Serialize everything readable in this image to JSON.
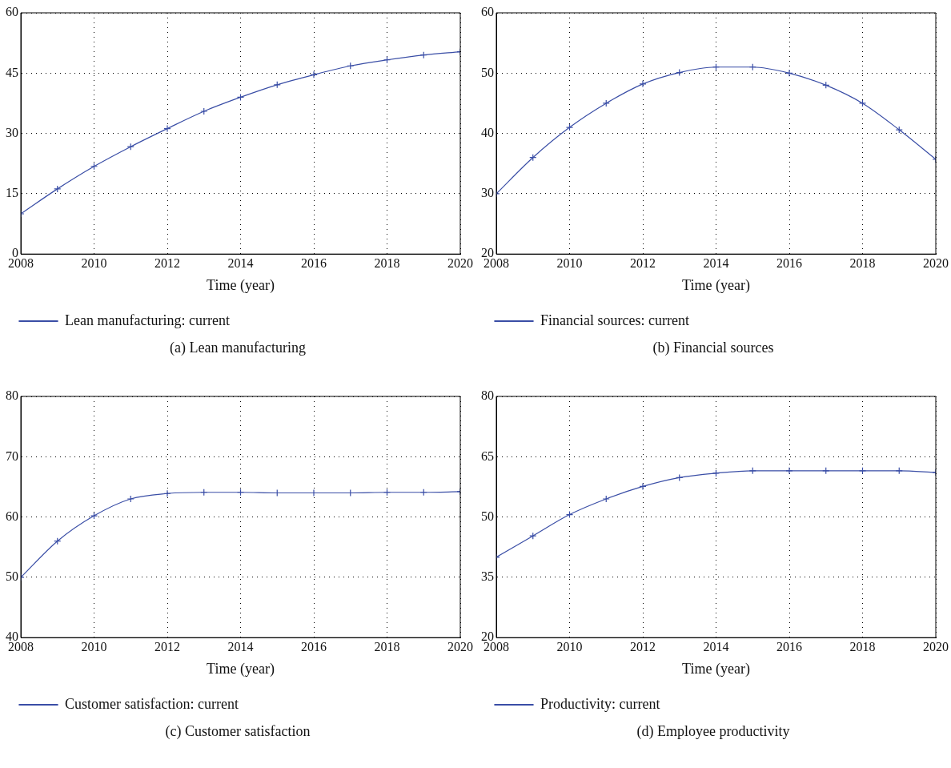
{
  "chart_data": [
    {
      "type": "line",
      "x": [
        2008,
        2009,
        2010,
        2011,
        2012,
        2013,
        2014,
        2015,
        2016,
        2017,
        2018,
        2019,
        2020
      ],
      "xlim": [
        2008,
        2020
      ],
      "xticks": [
        2008,
        2010,
        2012,
        2014,
        2016,
        2018,
        2020
      ],
      "ylim": [
        0,
        60
      ],
      "yticks": [
        0,
        15,
        30,
        45,
        60
      ],
      "xlabel": "Time (year)",
      "grid": true,
      "legend": "bottom",
      "marker": "cross",
      "line_style": "solid",
      "series": [
        {
          "name": "Lean manufacturing: current",
          "color": "#3a4ea6",
          "values": [
            10,
            16.2,
            21.8,
            26.7,
            31.2,
            35.5,
            39,
            42.1,
            44.6,
            46.8,
            48.3,
            49.5,
            50.3
          ]
        }
      ],
      "annotations": [
        "(a)  Lean manufacturing"
      ]
    },
    {
      "type": "line",
      "x": [
        2008,
        2009,
        2010,
        2011,
        2012,
        2013,
        2014,
        2015,
        2016,
        2017,
        2018,
        2019,
        2020
      ],
      "xlim": [
        2008,
        2020
      ],
      "xticks": [
        2008,
        2010,
        2012,
        2014,
        2016,
        2018,
        2020
      ],
      "ylim": [
        20,
        60
      ],
      "yticks": [
        20,
        30,
        40,
        50,
        60
      ],
      "xlabel": "Time (year)",
      "grid": true,
      "legend": "bottom",
      "marker": "cross",
      "line_style": "solid",
      "series": [
        {
          "name": "Financial sources: current",
          "color": "#3a4ea6",
          "values": [
            30,
            36,
            41,
            45,
            48.2,
            50.1,
            51,
            51,
            50,
            48,
            45,
            40.6,
            35.7
          ]
        }
      ],
      "annotations": [
        "(b)  Financial sources"
      ]
    },
    {
      "type": "line",
      "x": [
        2008,
        2009,
        2010,
        2011,
        2012,
        2013,
        2014,
        2015,
        2016,
        2017,
        2018,
        2019,
        2020
      ],
      "xlim": [
        2008,
        2020
      ],
      "xticks": [
        2008,
        2010,
        2012,
        2014,
        2016,
        2018,
        2020
      ],
      "ylim": [
        40,
        80
      ],
      "yticks": [
        40,
        50,
        60,
        70,
        80
      ],
      "xlabel": "Time (year)",
      "grid": true,
      "legend": "bottom",
      "marker": "cross",
      "line_style": "solid",
      "series": [
        {
          "name": "Customer satisfaction: current",
          "color": "#3a4ea6",
          "values": [
            50,
            56,
            60.2,
            63,
            63.9,
            64.1,
            64.1,
            64,
            64,
            64,
            64.1,
            64.1,
            64.2
          ]
        }
      ],
      "annotations": [
        "(c)  Customer satisfaction"
      ]
    },
    {
      "type": "line",
      "x": [
        2008,
        2009,
        2010,
        2011,
        2012,
        2013,
        2014,
        2015,
        2016,
        2017,
        2018,
        2019,
        2020
      ],
      "xlim": [
        2008,
        2020
      ],
      "xticks": [
        2008,
        2010,
        2012,
        2014,
        2016,
        2018,
        2020
      ],
      "ylim": [
        20,
        80
      ],
      "yticks": [
        20,
        35,
        50,
        65,
        80
      ],
      "xlabel": "Time (year)",
      "grid": true,
      "legend": "bottom",
      "marker": "cross",
      "line_style": "solid",
      "series": [
        {
          "name": "Productivity: current",
          "color": "#3a4ea6",
          "values": [
            40,
            45.3,
            50.6,
            54.5,
            57.6,
            59.8,
            60.9,
            61.5,
            61.5,
            61.5,
            61.5,
            61.5,
            61.1
          ]
        }
      ],
      "annotations": [
        "(d)  Employee productivity"
      ]
    }
  ]
}
